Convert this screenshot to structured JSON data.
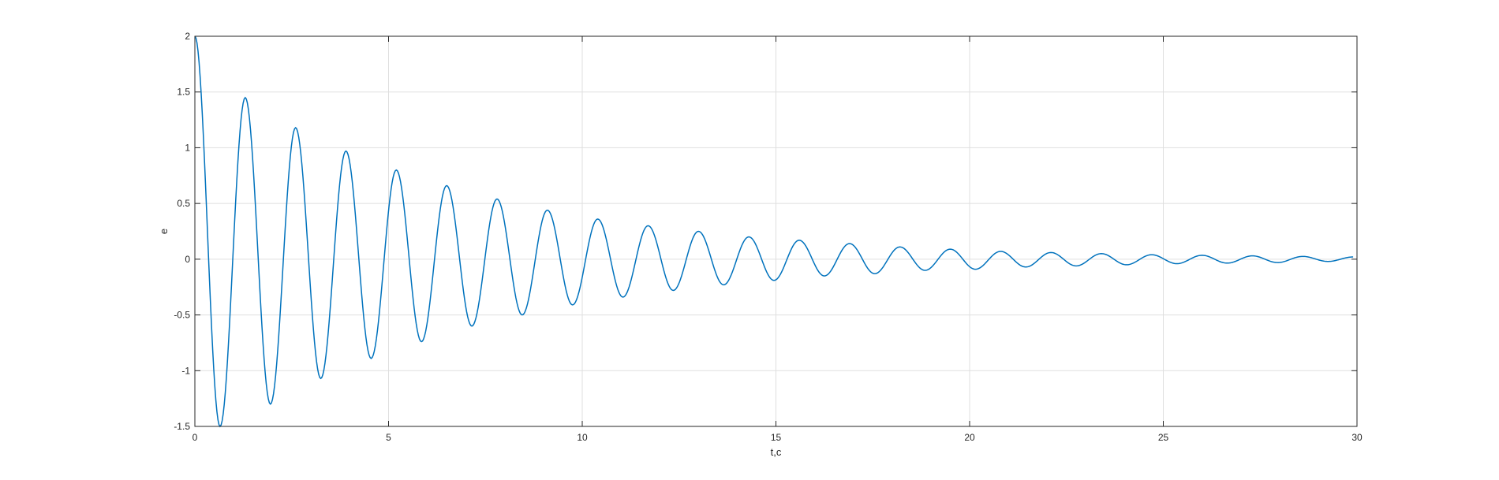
{
  "chart_data": {
    "type": "line",
    "title": "",
    "xlabel": "t,c",
    "ylabel": "e",
    "xlim": [
      0,
      30
    ],
    "ylim": [
      -1.5,
      2
    ],
    "x_ticks": [
      0,
      5,
      10,
      15,
      20,
      25,
      30
    ],
    "y_ticks": [
      -1.5,
      -1,
      -0.5,
      0,
      0.5,
      1,
      1.5,
      2
    ],
    "x_tick_labels": [
      "0",
      "5",
      "10",
      "15",
      "20",
      "25",
      "30"
    ],
    "y_tick_labels": [
      "-1.5",
      "-1",
      "-0.5",
      "0",
      "0.5",
      "1",
      "1.5",
      "2"
    ],
    "grid": true,
    "series": [
      {
        "color": "#0072BD",
        "x": [
          0,
          0.65,
          1.3,
          1.95,
          2.6,
          3.25,
          3.9,
          4.55,
          5.2,
          5.85,
          6.5,
          7.15,
          7.8,
          8.45,
          9.1,
          9.75,
          10.4,
          11.05,
          11.7,
          12.35,
          13.0,
          13.65,
          14.3,
          14.95,
          15.6,
          16.25,
          16.9,
          17.55,
          18.2,
          18.85,
          19.5,
          20.15,
          20.8,
          21.45,
          22.1,
          22.75,
          23.4,
          24.05,
          24.7,
          25.35,
          26.0,
          26.65,
          27.3,
          27.95,
          28.6,
          29.25,
          29.9
        ],
        "y": [
          2.0,
          -1.5,
          1.45,
          -1.3,
          1.18,
          -1.07,
          0.97,
          -0.89,
          0.8,
          -0.74,
          0.66,
          -0.6,
          0.54,
          -0.5,
          0.44,
          -0.41,
          0.36,
          -0.34,
          0.3,
          -0.28,
          0.25,
          -0.23,
          0.2,
          -0.19,
          0.17,
          -0.15,
          0.14,
          -0.13,
          0.11,
          -0.1,
          0.09,
          -0.09,
          0.07,
          -0.07,
          0.06,
          -0.06,
          0.05,
          -0.05,
          0.04,
          -0.04,
          0.035,
          -0.035,
          0.03,
          -0.03,
          0.025,
          -0.02,
          0.02
        ]
      }
    ]
  }
}
